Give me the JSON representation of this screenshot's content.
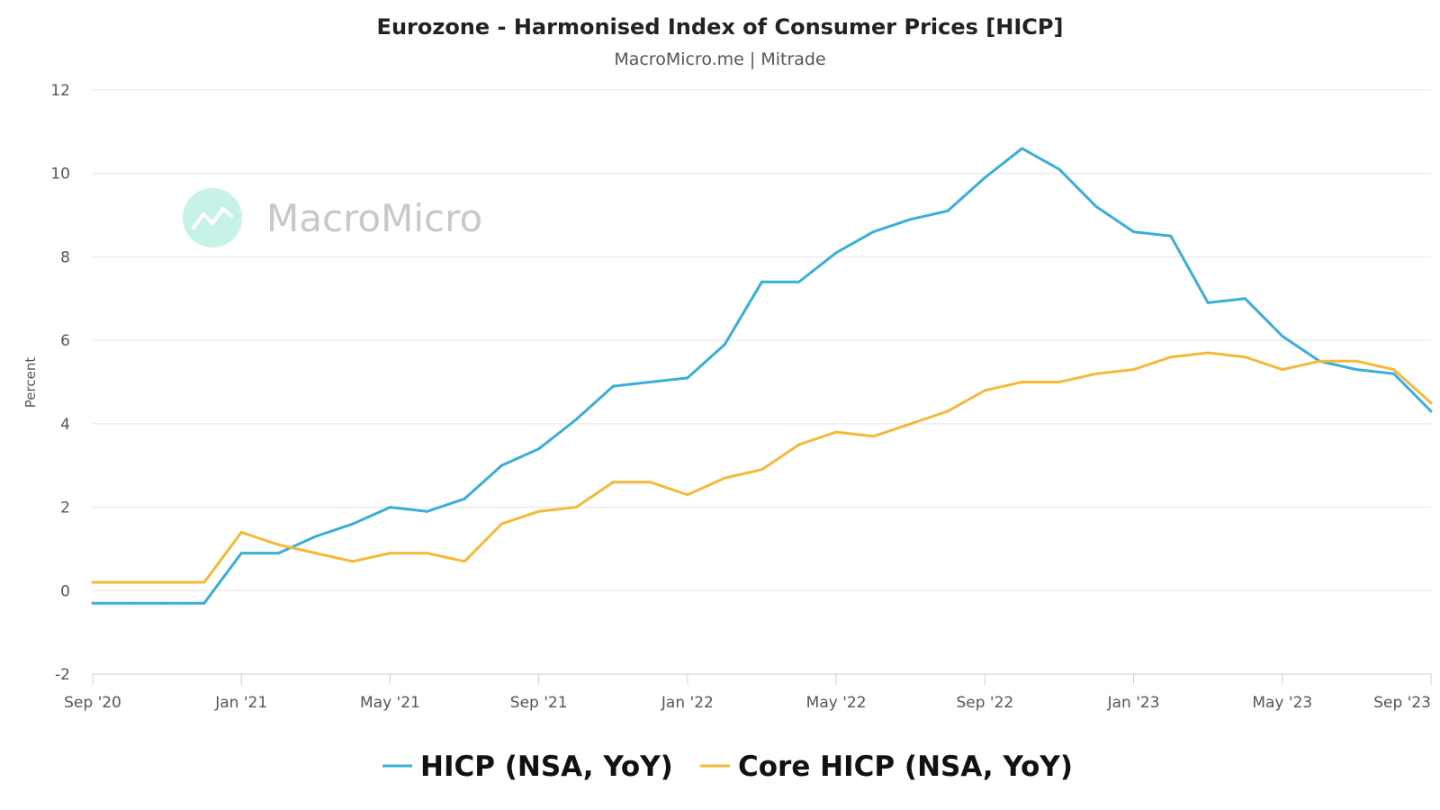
{
  "watermark": {
    "text": "MacroMicro"
  },
  "chart_data": {
    "type": "line",
    "title": "Eurozone - Harmonised Index of Consumer Prices [HICP]",
    "subtitle": "MacroMicro.me | Mitrade",
    "xlabel": "",
    "ylabel": "Percent",
    "ylim": [
      -2,
      12
    ],
    "yticks": [
      -2,
      0,
      2,
      4,
      6,
      8,
      10,
      12
    ],
    "xtick_labels": [
      "Sep '20",
      "Jan '21",
      "May '21",
      "Sep '21",
      "Jan '22",
      "May '22",
      "Sep '22",
      "Jan '23",
      "May '23",
      "Sep '23"
    ],
    "x": [
      "2020-09",
      "2020-10",
      "2020-11",
      "2020-12",
      "2021-01",
      "2021-02",
      "2021-03",
      "2021-04",
      "2021-05",
      "2021-06",
      "2021-07",
      "2021-08",
      "2021-09",
      "2021-10",
      "2021-11",
      "2021-12",
      "2022-01",
      "2022-02",
      "2022-03",
      "2022-04",
      "2022-05",
      "2022-06",
      "2022-07",
      "2022-08",
      "2022-09",
      "2022-10",
      "2022-11",
      "2022-12",
      "2023-01",
      "2023-02",
      "2023-03",
      "2023-04",
      "2023-05",
      "2023-06",
      "2023-07",
      "2023-08",
      "2023-09"
    ],
    "grid": true,
    "legend_position": "bottom-center",
    "series": [
      {
        "name": "HICP (NSA, YoY)",
        "color": "#3aaed8",
        "values": [
          -0.3,
          -0.3,
          -0.3,
          -0.3,
          0.9,
          0.9,
          1.3,
          1.6,
          2.0,
          1.9,
          2.2,
          3.0,
          3.4,
          4.1,
          4.9,
          5.0,
          5.1,
          5.9,
          7.4,
          7.4,
          8.1,
          8.6,
          8.9,
          9.1,
          9.9,
          10.6,
          10.1,
          9.2,
          8.6,
          8.5,
          6.9,
          7.0,
          6.1,
          5.5,
          5.3,
          5.2,
          4.3
        ]
      },
      {
        "name": "Core HICP (NSA, YoY)",
        "color": "#f5b93a",
        "values": [
          0.2,
          0.2,
          0.2,
          0.2,
          1.4,
          1.1,
          0.9,
          0.7,
          0.9,
          0.9,
          0.7,
          1.6,
          1.9,
          2.0,
          2.6,
          2.6,
          2.3,
          2.7,
          2.9,
          3.5,
          3.8,
          3.7,
          4.0,
          4.3,
          4.8,
          5.0,
          5.0,
          5.2,
          5.3,
          5.6,
          5.7,
          5.6,
          5.3,
          5.5,
          5.5,
          5.3,
          4.5
        ]
      }
    ]
  }
}
